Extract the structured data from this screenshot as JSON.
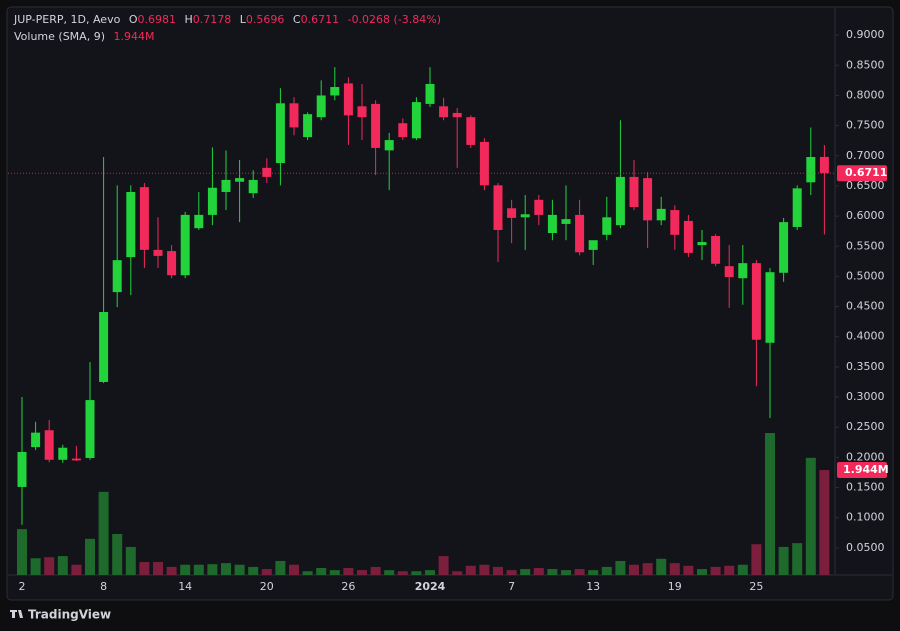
{
  "chart_data": {
    "type": "candlestick",
    "legend": {
      "title": "JUP-PERP, 1D, Aevo",
      "ohlc": [
        {
          "key": "O",
          "value": "0.6981"
        },
        {
          "key": "H",
          "value": "0.7178"
        },
        {
          "key": "L",
          "value": "0.5696"
        },
        {
          "key": "C",
          "value": "0.6711"
        }
      ],
      "change": "-0.0268 (-3.84%)"
    },
    "categories": [
      "2",
      null,
      null,
      null,
      null,
      null,
      "8",
      null,
      null,
      null,
      null,
      null,
      "14",
      null,
      null,
      null,
      null,
      null,
      "20",
      null,
      null,
      null,
      null,
      null,
      "26",
      null,
      null,
      null,
      null,
      null,
      "2024",
      null,
      null,
      null,
      null,
      null,
      "7",
      null,
      null,
      null,
      null,
      null,
      "13",
      null,
      null,
      null,
      null,
      null,
      "19",
      null,
      null,
      null,
      null,
      null,
      "25",
      null,
      null,
      null,
      null,
      null
    ],
    "open": [
      0.151,
      0.217,
      0.245,
      0.196,
      0.198,
      0.199,
      0.325,
      0.474,
      0.532,
      0.648,
      0.544,
      0.542,
      0.502,
      0.58,
      0.602,
      0.64,
      0.657,
      0.638,
      0.68,
      0.688,
      0.787,
      0.731,
      0.764,
      0.8,
      0.82,
      0.782,
      0.786,
      0.709,
      0.754,
      0.729,
      0.786,
      0.782,
      0.771,
      0.764,
      0.723,
      0.651,
      0.613,
      0.598,
      0.627,
      0.572,
      0.587,
      0.602,
      0.544,
      0.569,
      0.585,
      0.665,
      0.663,
      0.593,
      0.61,
      0.592,
      0.552,
      0.567,
      0.517,
      0.497,
      0.522,
      0.39,
      0.506,
      0.582,
      0.656,
      0.6981
    ],
    "high": [
      0.3,
      0.259,
      0.262,
      0.221,
      0.219,
      0.358,
      0.698,
      0.651,
      0.651,
      0.655,
      0.598,
      0.552,
      0.607,
      0.64,
      0.714,
      0.709,
      0.693,
      0.676,
      0.696,
      0.812,
      0.797,
      0.772,
      0.825,
      0.847,
      0.83,
      0.819,
      0.792,
      0.738,
      0.762,
      0.797,
      0.847,
      0.796,
      0.779,
      0.767,
      0.729,
      0.655,
      0.627,
      0.635,
      0.635,
      0.627,
      0.651,
      0.627,
      0.552,
      0.632,
      0.759,
      0.693,
      0.673,
      0.632,
      0.618,
      0.602,
      0.577,
      0.57,
      0.552,
      0.552,
      0.527,
      0.514,
      0.597,
      0.651,
      0.747,
      0.7178
    ],
    "low": [
      0.088,
      0.212,
      0.192,
      0.191,
      0.194,
      0.196,
      0.323,
      0.449,
      0.469,
      0.514,
      0.514,
      0.497,
      0.497,
      0.577,
      0.585,
      0.61,
      0.59,
      0.63,
      0.655,
      0.651,
      0.734,
      0.726,
      0.759,
      0.792,
      0.718,
      0.726,
      0.668,
      0.643,
      0.726,
      0.726,
      0.781,
      0.759,
      0.68,
      0.713,
      0.643,
      0.524,
      0.555,
      0.544,
      0.585,
      0.56,
      0.56,
      0.535,
      0.519,
      0.56,
      0.58,
      0.61,
      0.547,
      0.585,
      0.544,
      0.532,
      0.527,
      0.517,
      0.448,
      0.453,
      0.318,
      0.265,
      0.491,
      0.577,
      0.635,
      0.5696
    ],
    "close": [
      0.209,
      0.241,
      0.196,
      0.216,
      0.195,
      0.295,
      0.441,
      0.527,
      0.64,
      0.544,
      0.534,
      0.502,
      0.602,
      0.602,
      0.647,
      0.66,
      0.663,
      0.66,
      0.665,
      0.787,
      0.747,
      0.769,
      0.8,
      0.814,
      0.767,
      0.764,
      0.713,
      0.726,
      0.731,
      0.789,
      0.819,
      0.764,
      0.764,
      0.718,
      0.651,
      0.577,
      0.597,
      0.603,
      0.602,
      0.602,
      0.595,
      0.54,
      0.56,
      0.598,
      0.665,
      0.615,
      0.593,
      0.612,
      0.569,
      0.539,
      0.557,
      0.521,
      0.499,
      0.522,
      0.395,
      0.507,
      0.59,
      0.646,
      0.698,
      0.6711
    ],
    "volume": {
      "name": "Volume (SMA, 9)",
      "last_label": "1.944M",
      "values": [
        0.85,
        0.31,
        0.33,
        0.35,
        0.19,
        0.67,
        1.54,
        0.76,
        0.52,
        0.24,
        0.24,
        0.15,
        0.19,
        0.19,
        0.2,
        0.22,
        0.19,
        0.15,
        0.11,
        0.26,
        0.19,
        0.07,
        0.13,
        0.09,
        0.13,
        0.09,
        0.15,
        0.09,
        0.07,
        0.07,
        0.09,
        0.35,
        0.07,
        0.17,
        0.19,
        0.15,
        0.09,
        0.11,
        0.13,
        0.11,
        0.09,
        0.11,
        0.09,
        0.15,
        0.26,
        0.19,
        0.22,
        0.3,
        0.22,
        0.17,
        0.11,
        0.15,
        0.17,
        0.19,
        0.57,
        2.63,
        0.52,
        0.59,
        2.17,
        1.944
      ]
    },
    "last_price": {
      "value": 0.6711,
      "label": "0.6711"
    },
    "ylim": [
      0.005,
      0.945
    ],
    "yticks": [
      {
        "value": 0.9,
        "label": "0.9000"
      },
      {
        "value": 0.85,
        "label": "0.8500"
      },
      {
        "value": 0.8,
        "label": "0.8000"
      },
      {
        "value": 0.75,
        "label": "0.7500"
      },
      {
        "value": 0.7,
        "label": "0.7000"
      },
      {
        "value": 0.65,
        "label": "0.6500"
      },
      {
        "value": 0.6,
        "label": "0.6000"
      },
      {
        "value": 0.55,
        "label": "0.5500"
      },
      {
        "value": 0.5,
        "label": "0.5000"
      },
      {
        "value": 0.45,
        "label": "0.4500"
      },
      {
        "value": 0.4,
        "label": "0.4000"
      },
      {
        "value": 0.35,
        "label": "0.3500"
      },
      {
        "value": 0.3,
        "label": "0.3000"
      },
      {
        "value": 0.25,
        "label": "0.2500"
      },
      {
        "value": 0.2,
        "label": "0.2000"
      },
      {
        "value": 0.15,
        "label": "0.1500"
      },
      {
        "value": 0.1,
        "label": "0.1000"
      },
      {
        "value": 0.05,
        "label": "0.0500"
      }
    ],
    "grid": false,
    "up_color": "#22d33c",
    "down_color": "#f2295b",
    "up_volume_color": "#1e6a2c",
    "down_volume_color": "#7b1f3c",
    "brand": "TradingView"
  }
}
